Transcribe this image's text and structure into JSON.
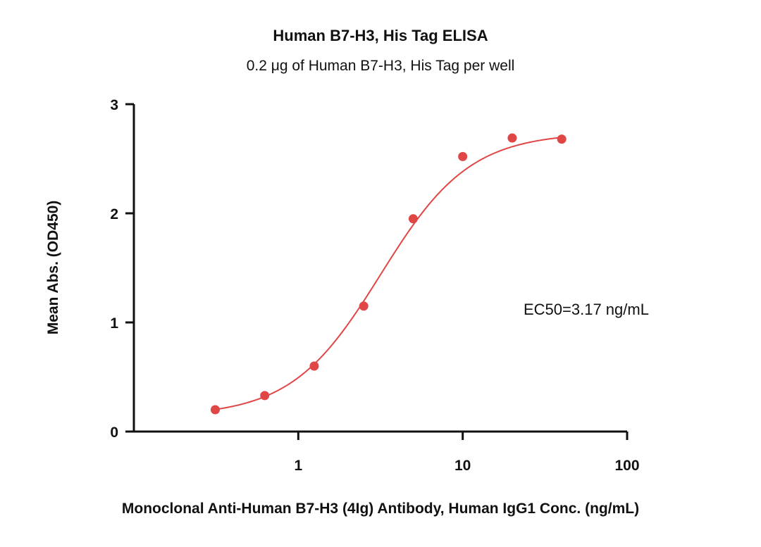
{
  "chart_data": {
    "type": "scatter",
    "title": "Human B7-H3, His Tag ELISA",
    "subtitle": "0.2 μg of Human B7-H3, His Tag per well",
    "xlabel": "Monoclonal Anti-Human B7-H3 (4Ig) Antibody, Human IgG1 Conc. (ng/mL)",
    "ylabel": "Mean Abs. (OD450)",
    "x_scale": "log",
    "xlim": [
      0.1,
      100
    ],
    "ylim": [
      0,
      3
    ],
    "x_ticks": [
      1,
      10,
      100
    ],
    "x_tick_labels": [
      "1",
      "10",
      "100"
    ],
    "y_ticks": [
      0,
      1,
      2,
      3
    ],
    "y_tick_labels": [
      "0",
      "1",
      "2",
      "3"
    ],
    "grid": false,
    "legend": "none",
    "series": [
      {
        "points": [
          {
            "x": 0.3125,
            "y": 0.2
          },
          {
            "x": 0.625,
            "y": 0.33
          },
          {
            "x": 1.25,
            "y": 0.6
          },
          {
            "x": 2.5,
            "y": 1.15
          },
          {
            "x": 5,
            "y": 1.95
          },
          {
            "x": 10,
            "y": 2.52
          },
          {
            "x": 20,
            "y": 2.69
          },
          {
            "x": 40,
            "y": 2.68
          }
        ],
        "fit": {
          "model": "4PL",
          "bottom": 0.14,
          "top": 2.74,
          "ec50": 3.17,
          "hill": 1.6
        }
      }
    ],
    "annotations": [
      "EC50=3.17 ng/mL"
    ],
    "color": "#e04646"
  }
}
